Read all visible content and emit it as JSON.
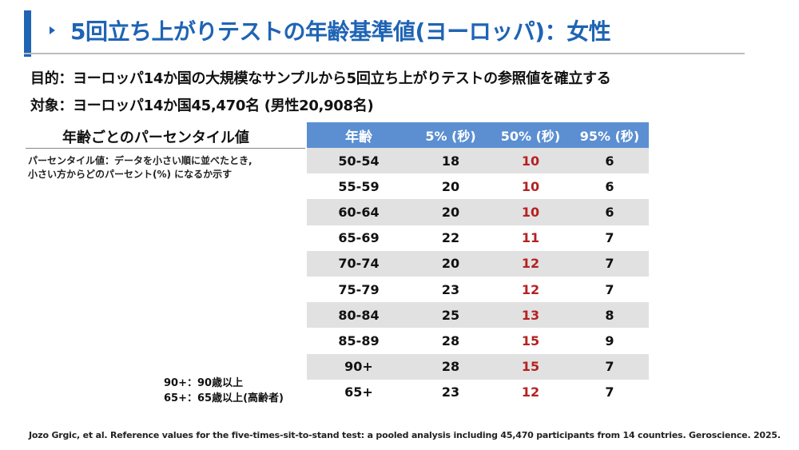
{
  "title": "5回立ち上がりテストの年齢基準値(ヨーロッパ)：女性",
  "purpose": "目的：ヨーロッパ14か国の大規模なサンプルから5回立ち上がりテストの参照値を確立する",
  "target": "対象：ヨーロッパ14か国45,470名 (男性20,908名)",
  "percentile_section": {
    "heading": "年齢ごとのパーセンタイル値",
    "description_line1": "パーセンタイル値：データを小さい順に並べたとき,",
    "description_line2": "小さい方からどのパーセント(%) になるか示す"
  },
  "age_notes": {
    "line1": "90+：90歳以上",
    "line2": "65+：65歳以上(高齢者)"
  },
  "table": {
    "headers": {
      "age": "年齢",
      "p5": "5% (秒)",
      "p50": "50% (秒)",
      "p95": "95% (秒)"
    },
    "rows": [
      {
        "age": "50-54",
        "p5": "18",
        "p50": "10",
        "p95": "6"
      },
      {
        "age": "55-59",
        "p5": "20",
        "p50": "10",
        "p95": "6"
      },
      {
        "age": "60-64",
        "p5": "20",
        "p50": "10",
        "p95": "6"
      },
      {
        "age": "65-69",
        "p5": "22",
        "p50": "11",
        "p95": "7"
      },
      {
        "age": "70-74",
        "p5": "20",
        "p50": "12",
        "p95": "7"
      },
      {
        "age": "75-79",
        "p5": "23",
        "p50": "12",
        "p95": "7"
      },
      {
        "age": "80-84",
        "p5": "25",
        "p50": "13",
        "p95": "8"
      },
      {
        "age": "85-89",
        "p5": "28",
        "p50": "15",
        "p95": "9"
      },
      {
        "age": "90+",
        "p5": "28",
        "p50": "15",
        "p95": "7"
      },
      {
        "age": "65+",
        "p5": "23",
        "p50": "12",
        "p95": "7"
      }
    ]
  },
  "citation": "Jozo Grgic, et al. Reference values for the five-times-sit-to-stand test: a pooled analysis including 45,470 participants from 14 countries. Geroscience. 2025.",
  "colors": {
    "accent_blue": "#1f64b4",
    "header_blue": "#5b8fd1",
    "median_red": "#b52121",
    "stripe_gray": "#e1e1e1"
  }
}
